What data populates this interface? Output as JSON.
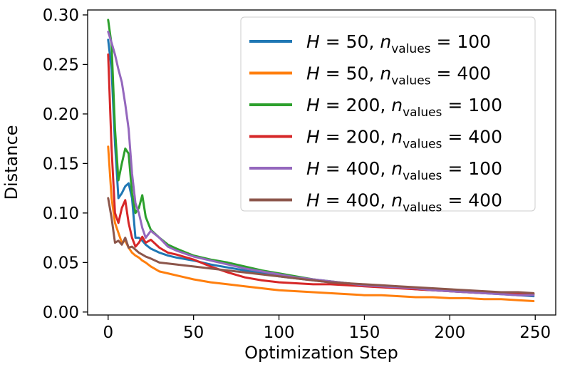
{
  "chart_data": {
    "type": "line",
    "title": "",
    "xlabel": "Optimization Step",
    "ylabel": "Distance",
    "xlim": [
      -12,
      262
    ],
    "ylim": [
      -0.003,
      0.305
    ],
    "xticks": [
      0,
      50,
      100,
      150,
      200,
      250
    ],
    "xtick_labels": [
      "0",
      "50",
      "100",
      "150",
      "200",
      "250"
    ],
    "yticks": [
      0.0,
      0.05,
      0.1,
      0.15,
      0.2,
      0.25,
      0.3
    ],
    "ytick_labels": [
      "0.00",
      "0.05",
      "0.10",
      "0.15",
      "0.20",
      "0.25",
      "0.30"
    ],
    "grid": false,
    "legend_position": "top-right",
    "series": [
      {
        "name": "H = 50, n_values = 100",
        "legend": {
          "H": "H",
          "h_value": "50",
          "n": "n",
          "sub": "values",
          "n_value": "100"
        },
        "color": "#1f77b4",
        "x": [
          0,
          2,
          4,
          6,
          8,
          10,
          12,
          14,
          16,
          18,
          20,
          22,
          25,
          30,
          35,
          40,
          50,
          60,
          70,
          80,
          90,
          100,
          110,
          120,
          130,
          140,
          150,
          160,
          170,
          180,
          190,
          200,
          210,
          220,
          230,
          240,
          249
        ],
        "y": [
          0.275,
          0.245,
          0.17,
          0.115,
          0.12,
          0.127,
          0.13,
          0.115,
          0.075,
          0.075,
          0.072,
          0.068,
          0.064,
          0.06,
          0.057,
          0.055,
          0.052,
          0.048,
          0.045,
          0.042,
          0.039,
          0.036,
          0.034,
          0.032,
          0.03,
          0.029,
          0.027,
          0.026,
          0.025,
          0.023,
          0.022,
          0.021,
          0.02,
          0.019,
          0.018,
          0.017,
          0.016
        ]
      },
      {
        "name": "H = 50, n_values = 400",
        "legend": {
          "H": "H",
          "h_value": "50",
          "n": "n",
          "sub": "values",
          "n_value": "400"
        },
        "color": "#ff7f0e",
        "x": [
          0,
          2,
          4,
          6,
          8,
          10,
          12,
          14,
          16,
          18,
          20,
          22,
          25,
          30,
          35,
          40,
          50,
          60,
          70,
          80,
          90,
          100,
          110,
          120,
          130,
          140,
          150,
          160,
          170,
          180,
          190,
          200,
          210,
          220,
          230,
          240,
          249
        ],
        "y": [
          0.167,
          0.115,
          0.09,
          0.08,
          0.07,
          0.072,
          0.065,
          0.06,
          0.057,
          0.055,
          0.052,
          0.05,
          0.046,
          0.041,
          0.039,
          0.037,
          0.033,
          0.03,
          0.028,
          0.026,
          0.024,
          0.022,
          0.021,
          0.02,
          0.019,
          0.018,
          0.017,
          0.017,
          0.016,
          0.015,
          0.015,
          0.014,
          0.014,
          0.013,
          0.013,
          0.012,
          0.011
        ]
      },
      {
        "name": "H = 200, n_values = 100",
        "legend": {
          "H": "H",
          "h_value": "200",
          "n": "n",
          "sub": "values",
          "n_value": "100"
        },
        "color": "#2ca02c",
        "x": [
          0,
          2,
          4,
          6,
          8,
          10,
          12,
          14,
          16,
          18,
          20,
          22,
          25,
          30,
          35,
          40,
          50,
          60,
          70,
          80,
          90,
          100,
          110,
          120,
          130,
          140,
          150,
          160,
          170,
          180,
          190,
          200,
          210,
          220,
          230,
          240,
          249
        ],
        "y": [
          0.295,
          0.27,
          0.185,
          0.133,
          0.15,
          0.165,
          0.16,
          0.12,
          0.1,
          0.105,
          0.118,
          0.096,
          0.083,
          0.075,
          0.068,
          0.064,
          0.057,
          0.053,
          0.05,
          0.046,
          0.042,
          0.039,
          0.036,
          0.033,
          0.031,
          0.029,
          0.027,
          0.026,
          0.025,
          0.024,
          0.023,
          0.022,
          0.021,
          0.02,
          0.019,
          0.018,
          0.018
        ]
      },
      {
        "name": "H = 200, n_values = 400",
        "legend": {
          "H": "H",
          "h_value": "200",
          "n": "n",
          "sub": "values",
          "n_value": "400"
        },
        "color": "#d62728",
        "x": [
          0,
          2,
          4,
          6,
          8,
          10,
          12,
          14,
          16,
          18,
          20,
          22,
          25,
          30,
          35,
          40,
          50,
          60,
          70,
          80,
          90,
          100,
          110,
          120,
          130,
          140,
          150,
          160,
          170,
          180,
          190,
          200,
          210,
          220,
          230,
          240,
          249
        ],
        "y": [
          0.26,
          0.165,
          0.1,
          0.09,
          0.105,
          0.113,
          0.09,
          0.075,
          0.066,
          0.07,
          0.076,
          0.07,
          0.073,
          0.065,
          0.06,
          0.058,
          0.053,
          0.046,
          0.04,
          0.035,
          0.032,
          0.03,
          0.029,
          0.028,
          0.028,
          0.027,
          0.026,
          0.025,
          0.024,
          0.023,
          0.022,
          0.021,
          0.02,
          0.019,
          0.019,
          0.018,
          0.018
        ]
      },
      {
        "name": "H = 400, n_values = 100",
        "legend": {
          "H": "H",
          "h_value": "400",
          "n": "n",
          "sub": "values",
          "n_value": "100"
        },
        "color": "#9467bd",
        "x": [
          0,
          2,
          4,
          6,
          8,
          10,
          12,
          14,
          16,
          18,
          20,
          22,
          25,
          30,
          35,
          40,
          50,
          60,
          70,
          80,
          90,
          100,
          110,
          120,
          130,
          140,
          150,
          160,
          170,
          180,
          190,
          200,
          210,
          220,
          230,
          240,
          249
        ],
        "y": [
          0.283,
          0.272,
          0.26,
          0.245,
          0.232,
          0.21,
          0.185,
          0.14,
          0.11,
          0.1,
          0.085,
          0.075,
          0.082,
          0.075,
          0.066,
          0.062,
          0.056,
          0.052,
          0.048,
          0.044,
          0.041,
          0.038,
          0.035,
          0.033,
          0.031,
          0.029,
          0.027,
          0.026,
          0.025,
          0.024,
          0.022,
          0.021,
          0.02,
          0.019,
          0.018,
          0.017,
          0.017
        ]
      },
      {
        "name": "H = 400, n_values = 400",
        "legend": {
          "H": "H",
          "h_value": "400",
          "n": "n",
          "sub": "values",
          "n_value": "400"
        },
        "color": "#8c564b",
        "x": [
          0,
          2,
          4,
          6,
          8,
          10,
          12,
          14,
          16,
          18,
          20,
          22,
          25,
          30,
          35,
          40,
          50,
          60,
          70,
          80,
          90,
          100,
          110,
          120,
          130,
          140,
          150,
          160,
          170,
          180,
          190,
          200,
          210,
          220,
          230,
          240,
          249
        ],
        "y": [
          0.115,
          0.095,
          0.07,
          0.072,
          0.068,
          0.075,
          0.065,
          0.066,
          0.063,
          0.06,
          0.058,
          0.056,
          0.054,
          0.05,
          0.049,
          0.048,
          0.046,
          0.044,
          0.042,
          0.04,
          0.038,
          0.036,
          0.034,
          0.032,
          0.03,
          0.029,
          0.028,
          0.027,
          0.026,
          0.025,
          0.024,
          0.023,
          0.022,
          0.021,
          0.02,
          0.02,
          0.019
        ]
      }
    ]
  }
}
